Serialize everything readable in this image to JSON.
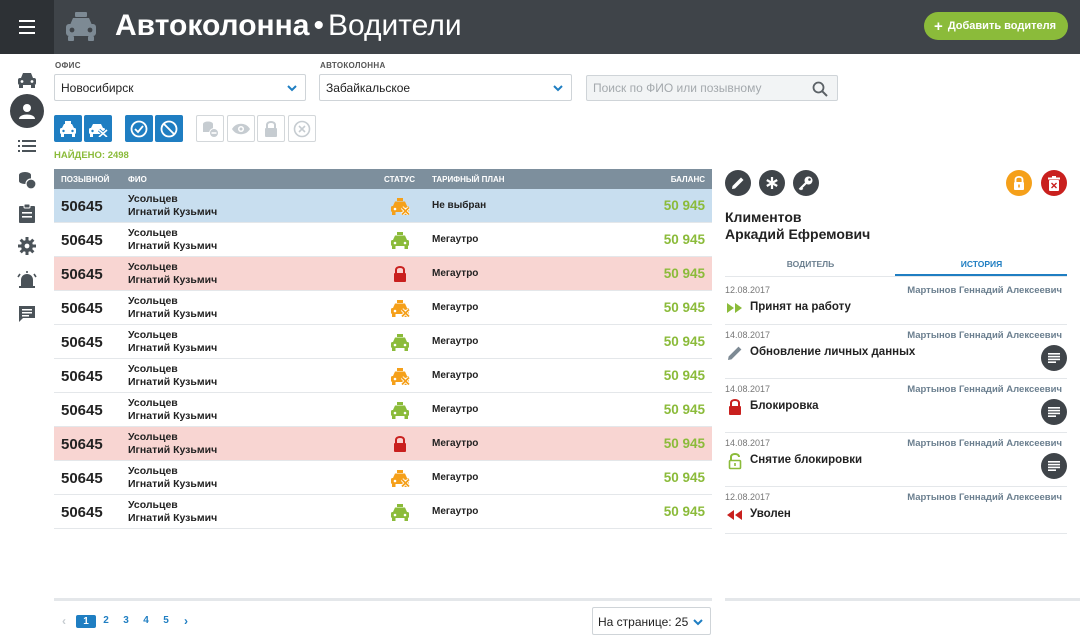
{
  "header": {
    "app_name": "Автоколонна",
    "separator": "•",
    "section": "Водители",
    "add_button": "Добавить водителя",
    "add_icon": "plus-icon"
  },
  "sidebar": {
    "items": [
      {
        "icon": "car-icon"
      },
      {
        "icon": "person-icon",
        "active": true
      },
      {
        "icon": "list-icon"
      },
      {
        "icon": "coins-icon"
      },
      {
        "icon": "clipboard-icon"
      },
      {
        "icon": "gear-icon"
      },
      {
        "icon": "alarm-icon"
      },
      {
        "icon": "chat-icon"
      }
    ]
  },
  "filters": {
    "office_label": "ОФИС",
    "office_value": "Новосибирск",
    "fleet_label": "АВТОКОЛОННА",
    "fleet_value": "Забайкальское",
    "search_placeholder": "Поиск по ФИО или позывному"
  },
  "found": "НАЙДЕНО: 2498",
  "table": {
    "headers": {
      "callsign": "ПОЗЫВНОЙ",
      "name": "ФИО",
      "status": "СТАТУС",
      "plan": "ТАРИФНЫЙ ПЛАН",
      "balance": "БАЛАНС"
    },
    "rows": [
      {
        "callsign": "50645",
        "last": "Усольцев",
        "first": "Игнатий Кузьмич",
        "status": "car-off",
        "plan": "Не выбран",
        "balance": "50 945",
        "state": "selected"
      },
      {
        "callsign": "50645",
        "last": "Усольцев",
        "first": "Игнатий Кузьмич",
        "status": "car-on",
        "plan": "Мегаутро",
        "balance": "50 945",
        "state": ""
      },
      {
        "callsign": "50645",
        "last": "Усольцев",
        "first": "Игнатий Кузьмич",
        "status": "lock",
        "plan": "Мегаутро",
        "balance": "50 945",
        "state": "blocked"
      },
      {
        "callsign": "50645",
        "last": "Усольцев",
        "first": "Игнатий Кузьмич",
        "status": "car-off",
        "plan": "Мегаутро",
        "balance": "50 945",
        "state": ""
      },
      {
        "callsign": "50645",
        "last": "Усольцев",
        "first": "Игнатий Кузьмич",
        "status": "car-on",
        "plan": "Мегаутро",
        "balance": "50 945",
        "state": ""
      },
      {
        "callsign": "50645",
        "last": "Усольцев",
        "first": "Игнатий Кузьмич",
        "status": "car-off",
        "plan": "Мегаутро",
        "balance": "50 945",
        "state": ""
      },
      {
        "callsign": "50645",
        "last": "Усольцев",
        "first": "Игнатий Кузьмич",
        "status": "car-on",
        "plan": "Мегаутро",
        "balance": "50 945",
        "state": ""
      },
      {
        "callsign": "50645",
        "last": "Усольцев",
        "first": "Игнатий Кузьмич",
        "status": "lock",
        "plan": "Мегаутро",
        "balance": "50 945",
        "state": "blocked"
      },
      {
        "callsign": "50645",
        "last": "Усольцев",
        "first": "Игнатий Кузьмич",
        "status": "car-off",
        "plan": "Мегаутро",
        "balance": "50 945",
        "state": ""
      },
      {
        "callsign": "50645",
        "last": "Усольцев",
        "first": "Игнатий Кузьмич",
        "status": "car-on",
        "plan": "Мегаутро",
        "balance": "50 945",
        "state": ""
      }
    ]
  },
  "pagination": {
    "pages": [
      "1",
      "2",
      "3",
      "4",
      "5"
    ],
    "current": "1",
    "per_page": "На странице: 25"
  },
  "driver": {
    "last_name": "Климентов",
    "first_name": "Аркадий Ефремович",
    "tabs": [
      "ВОДИТЕЛЬ",
      "ИСТОРИЯ"
    ],
    "active_tab": "ИСТОРИЯ",
    "history": [
      {
        "date": "12.08.2017",
        "user": "Мартынов Геннадий Алексеевич",
        "text": "Принят на работу",
        "icon": "fast-forward-icon"
      },
      {
        "date": "14.08.2017",
        "user": "Мартынов Геннадий Алексеевич",
        "text": "Обновление личных данных",
        "icon": "pencil-icon"
      },
      {
        "date": "14.08.2017",
        "user": "Мартынов Геннадий Алексеевич",
        "text": "Блокировка",
        "icon": "lock-icon"
      },
      {
        "date": "14.08.2017",
        "user": "Мартынов Геннадий Алексеевич",
        "text": "Снятие блокировки",
        "icon": "unlock-icon"
      },
      {
        "date": "12.08.2017",
        "user": "Мартынов Геннадий Алексеевич",
        "text": "Уволен",
        "icon": "rewind-icon"
      }
    ]
  },
  "colors": {
    "header_bg": "#3f4449",
    "accent_blue": "#1f7ec2",
    "accent_green": "#8bbb3a",
    "selected_row": "#c8deef",
    "blocked_row": "#f8d5d2",
    "orange": "#f5a01a",
    "red": "#c9201e"
  }
}
